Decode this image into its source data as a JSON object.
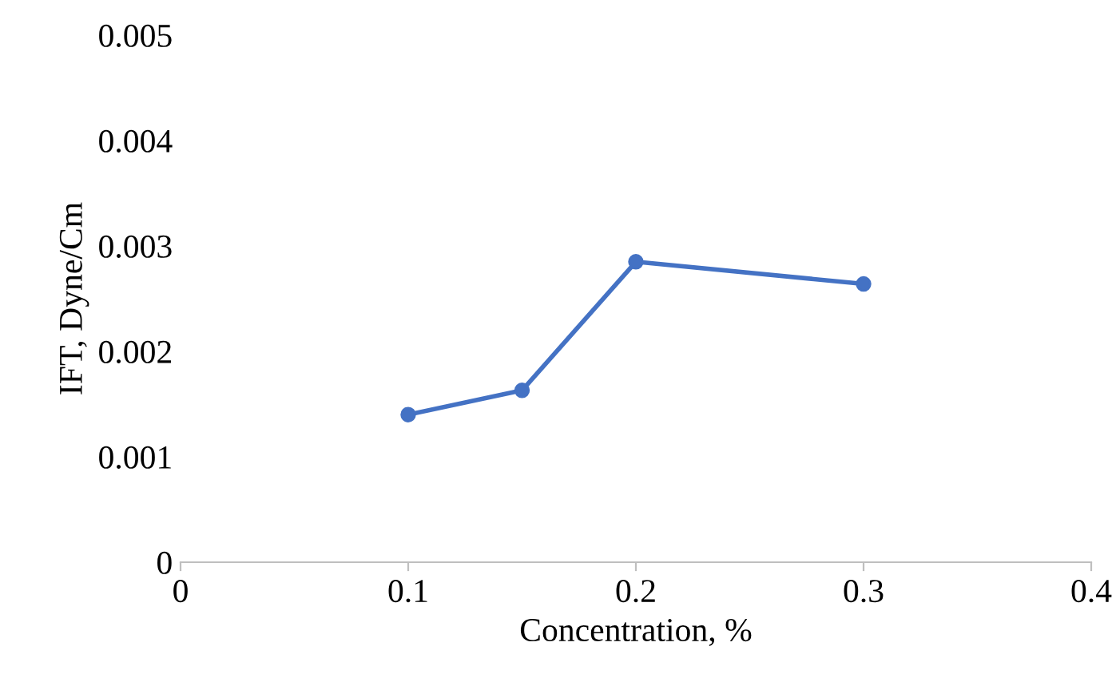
{
  "chart_data": {
    "type": "line",
    "xlabel": "Concentration, %",
    "ylabel": "IFT, Dyne/Cm",
    "x": [
      0.1,
      0.15,
      0.2,
      0.3
    ],
    "series": [
      {
        "color": "#4472c4",
        "values": [
          0.0014,
          0.00163,
          0.00285,
          0.00264
        ]
      }
    ],
    "xlim": [
      0,
      0.4
    ],
    "xticks": [
      0,
      0.1,
      0.2,
      0.3,
      0.4
    ],
    "ylim": [
      0,
      0.005
    ],
    "yticks": [
      0,
      0.001,
      0.002,
      0.003,
      0.004,
      0.005
    ],
    "marker": "circle",
    "line_style": "solid",
    "grid": false,
    "legend": false
  }
}
